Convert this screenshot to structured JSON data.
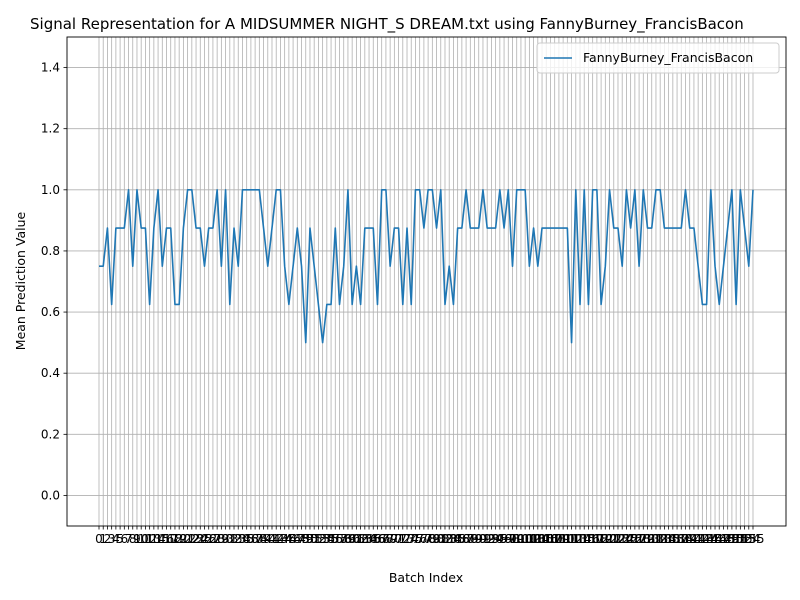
{
  "chart_data": {
    "type": "line",
    "title": "Signal Representation for A MIDSUMMER NIGHT_S DREAM.txt using FannyBurney_FrancisBacon",
    "xlabel": "Batch Index",
    "ylabel": "Mean Prediction Value",
    "ylim": [
      -0.1,
      1.5
    ],
    "yticks": [
      0.0,
      0.2,
      0.4,
      0.6,
      0.8,
      1.0,
      1.2,
      1.4
    ],
    "grid": true,
    "legend_position": "top-right",
    "series": [
      {
        "name": "FannyBurney_FrancisBacon",
        "color": "#1f77b4",
        "values": [
          0.75,
          0.75,
          0.875,
          0.625,
          0.875,
          0.875,
          0.875,
          1.0,
          0.75,
          1.0,
          0.875,
          0.875,
          0.625,
          0.875,
          1.0,
          0.75,
          0.875,
          0.875,
          0.625,
          0.625,
          0.875,
          1.0,
          1.0,
          0.875,
          0.875,
          0.75,
          0.875,
          0.875,
          1.0,
          0.75,
          1.0,
          0.625,
          0.875,
          0.75,
          1.0,
          1.0,
          1.0,
          1.0,
          1.0,
          0.875,
          0.75,
          0.875,
          1.0,
          1.0,
          0.75,
          0.625,
          0.75,
          0.875,
          0.75,
          0.5,
          0.875,
          0.75,
          0.625,
          0.5,
          0.625,
          0.625,
          0.875,
          0.625,
          0.75,
          1.0,
          0.625,
          0.75,
          0.625,
          0.875,
          0.875,
          0.875,
          0.625,
          1.0,
          1.0,
          0.75,
          0.875,
          0.875,
          0.625,
          0.875,
          0.625,
          1.0,
          1.0,
          0.875,
          1.0,
          1.0,
          0.875,
          1.0,
          0.625,
          0.75,
          0.625,
          0.875,
          0.875,
          1.0,
          0.875,
          0.875,
          0.875,
          1.0,
          0.875,
          0.875,
          0.875,
          1.0,
          0.875,
          1.0,
          0.75,
          1.0,
          1.0,
          1.0,
          0.75,
          0.875,
          0.75,
          0.875,
          0.875,
          0.875,
          0.875,
          0.875,
          0.875,
          0.875,
          0.5,
          1.0,
          0.625,
          1.0,
          0.625,
          1.0,
          1.0,
          0.625,
          0.75,
          1.0,
          0.875,
          0.875,
          0.75,
          1.0,
          0.875,
          1.0,
          0.75,
          1.0,
          0.875,
          0.875,
          1.0,
          1.0,
          0.875,
          0.875,
          0.875,
          0.875,
          0.875,
          1.0,
          0.875,
          0.875,
          0.75,
          0.625,
          0.625,
          1.0,
          0.75,
          0.625,
          0.75,
          0.875,
          1.0,
          0.625,
          1.0,
          0.875,
          0.75,
          1.0
        ]
      }
    ],
    "x_tick_labels_visible": [
      "0",
      "1",
      "2",
      "3",
      "4",
      "5",
      "6",
      "7",
      "8",
      "9",
      "10",
      "11",
      "12",
      "13",
      "14",
      "15",
      "16",
      "17",
      "18",
      "19",
      "20",
      "21",
      "22",
      "23",
      "24",
      "25",
      "26",
      "27",
      "28",
      "29",
      "30",
      "31",
      "32",
      "33",
      "34",
      "35",
      "36",
      "37",
      "38",
      "39",
      "40",
      "41",
      "42",
      "43",
      "44",
      "45",
      "46",
      "47",
      "48",
      "49",
      "50",
      "51",
      "52",
      "53",
      "54",
      "55",
      "56",
      "57",
      "58",
      "59",
      "60",
      "61",
      "62",
      "63",
      "64",
      "65",
      "66",
      "67",
      "68",
      "69",
      "70",
      "71",
      "72",
      "73",
      "74",
      "75",
      "76",
      "77",
      "78",
      "79",
      "80",
      "81",
      "82",
      "83",
      "84",
      "85",
      "86",
      "87",
      "88",
      "89",
      "90",
      "91",
      "92",
      "93",
      "94",
      "95",
      "96",
      "97",
      "98",
      "99",
      "100",
      "101",
      "102",
      "103",
      "104",
      "105",
      "106",
      "107",
      "108",
      "109",
      "110",
      "111",
      "112",
      "113",
      "114",
      "115",
      "116",
      "117",
      "118",
      "119",
      "120",
      "121",
      "122",
      "123",
      "124",
      "125",
      "126",
      "127",
      "128",
      "129",
      "130",
      "131",
      "132",
      "133",
      "134",
      "135",
      "136",
      "137",
      "138",
      "139",
      "140",
      "141",
      "142",
      "143",
      "144",
      "145",
      "146",
      "147",
      "148",
      "149",
      "150",
      "151",
      "152",
      "153"
    ]
  }
}
